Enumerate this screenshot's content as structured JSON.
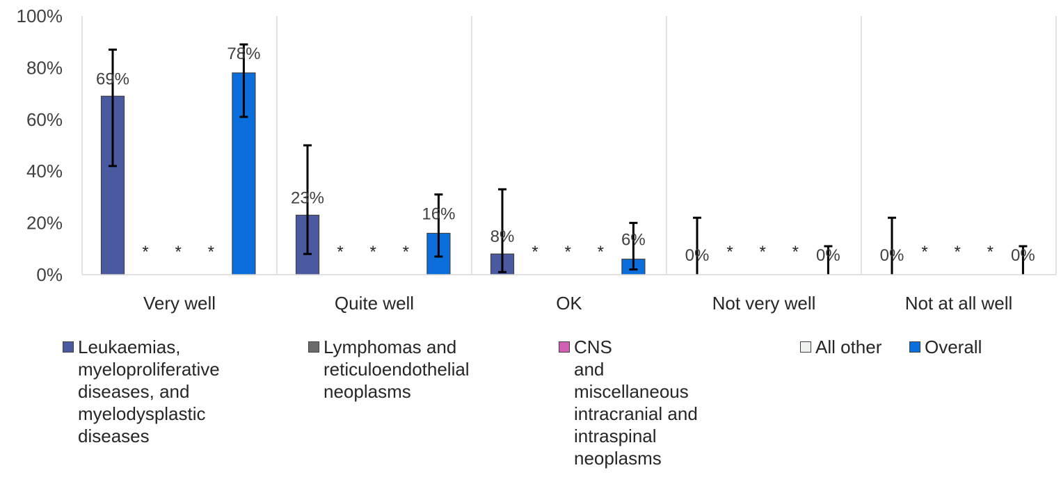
{
  "chart_data": {
    "type": "bar",
    "categories": [
      "Very well",
      "Quite well",
      "OK",
      "Not very well",
      "Not at all well"
    ],
    "ylim": [
      0,
      100
    ],
    "yticks": [
      "0%",
      "20%",
      "40%",
      "60%",
      "80%",
      "100%"
    ],
    "grid": "vertical separators between categories",
    "legend_position": "bottom",
    "suppressed_marker": "*",
    "series": [
      {
        "name": "Leukaemias, myeloproliferative diseases, and myelodysplastic diseases",
        "color": "#4a5aa0",
        "values": [
          69,
          23,
          8,
          0,
          0
        ],
        "labels": [
          "69%",
          "23%",
          "8%",
          "0%",
          "0%"
        ],
        "error_low": [
          42,
          8,
          1,
          0,
          0
        ],
        "error_high": [
          87,
          50,
          33,
          22,
          22
        ],
        "error_color": "#000000"
      },
      {
        "name": "Lymphomas and reticuloendothelial neoplasms",
        "color": "#6b6b6b",
        "values": [
          null,
          null,
          null,
          null,
          null
        ],
        "labels": [
          "*",
          "*",
          "*",
          "*",
          "*"
        ]
      },
      {
        "name": "CNS and miscellaneous intracranial and intraspinal neoplasms",
        "color": "#d160b5",
        "values": [
          null,
          null,
          null,
          null,
          null
        ],
        "labels": [
          "*",
          "*",
          "*",
          "*",
          "*"
        ]
      },
      {
        "name": "All other",
        "color": "#eef1ee",
        "values": [
          null,
          null,
          null,
          null,
          null
        ],
        "labels": [
          "*",
          "*",
          "*",
          "*",
          "*"
        ]
      },
      {
        "name": "Overall",
        "color": "#0a6fdc",
        "values": [
          78,
          16,
          6,
          0,
          0
        ],
        "labels": [
          "78%",
          "16%",
          "6%",
          "0%",
          "0%"
        ],
        "error_low": [
          61,
          7,
          2,
          0,
          0
        ],
        "error_high": [
          89,
          31,
          20,
          11,
          11
        ],
        "error_color": "#000000"
      }
    ]
  },
  "legend": {
    "items": [
      {
        "lines": [
          "Leukaemias,",
          "myeloproliferative",
          "diseases, and",
          "myelodysplastic",
          "diseases"
        ],
        "color": "#4a5aa0"
      },
      {
        "lines": [
          "Lymphomas and",
          "reticuloendothelial",
          "neoplasms"
        ],
        "color": "#6b6b6b"
      },
      {
        "lines": [
          "CNS",
          "and",
          "miscellaneous",
          "intracranial and",
          "intraspinal",
          "neoplasms"
        ],
        "color": "#d160b5"
      },
      {
        "lines": [
          "All other"
        ],
        "color": "#eef1ee"
      },
      {
        "lines": [
          "Overall"
        ],
        "color": "#0a6fdc"
      }
    ]
  }
}
